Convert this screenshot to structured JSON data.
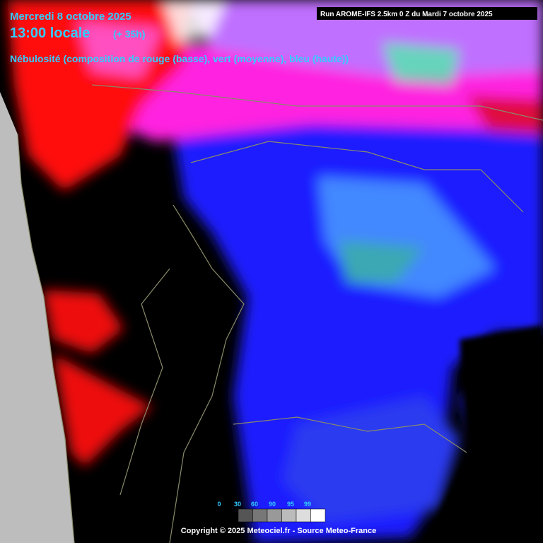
{
  "header": {
    "date": "Mercredi 8 octobre 2025",
    "time": "13:00 locale",
    "lead": "(+ 35h)",
    "description": "Nébulosité (composition de rouge (basse), vert (moyenne), bleu (haute))",
    "run": "Run AROME-IFS 2.5km 0 Z du Mardi 7 octobre 2025"
  },
  "legend": {
    "labels": [
      "0",
      "30",
      "60",
      "90",
      "95",
      "99"
    ]
  },
  "footer": {
    "copyright": "Copyright © 2025 Meteociel.fr - Source Meteo-France"
  }
}
